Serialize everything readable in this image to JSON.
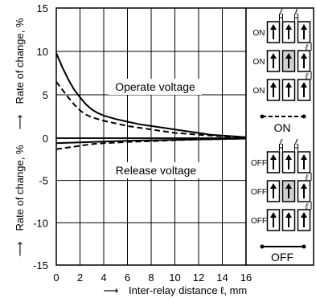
{
  "chart_data": {
    "type": "line",
    "xlabel": "Inter-relay distance ℓ, mm",
    "xlabel_arrow": "⟶",
    "ylabel_top": "Rate of change, %",
    "ylabel_bottom": "Rate of change, %",
    "ylabel_arrow": "⟶",
    "xlim": [
      0,
      16
    ],
    "ylim": [
      -15,
      15
    ],
    "x_ticks": [
      "0",
      "2",
      "4",
      "6",
      "8",
      "10",
      "12",
      "14",
      "16"
    ],
    "y_ticks_top": [
      "15",
      "10",
      "5",
      "0"
    ],
    "y_ticks_bottom": [
      "-5",
      "-10",
      "-15"
    ],
    "grid": true,
    "annotations": [
      {
        "text": "Operate voltage",
        "x": 9.5,
        "y": 5.3
      },
      {
        "text": "Release voltage",
        "x": 8,
        "y": -3.2
      }
    ],
    "series": [
      {
        "style": "solid",
        "x": [
          0,
          0.5,
          1,
          1.5,
          2,
          2.5,
          3,
          3.5,
          4,
          5,
          6,
          7,
          8,
          9,
          10,
          11,
          12,
          13,
          14,
          15,
          16
        ],
        "y": [
          9.8,
          8.2,
          6.8,
          5.6,
          4.7,
          3.9,
          3.3,
          2.9,
          2.6,
          2.2,
          1.9,
          1.6,
          1.4,
          1.2,
          1.0,
          0.8,
          0.6,
          0.4,
          0.3,
          0.2,
          0.1
        ]
      },
      {
        "style": "dashed",
        "x": [
          0,
          0.5,
          1,
          1.5,
          2,
          2.5,
          3,
          3.5,
          4,
          5,
          6,
          7,
          8,
          9,
          10,
          11,
          12,
          13,
          14,
          15,
          16
        ],
        "y": [
          6.5,
          5.6,
          4.7,
          3.9,
          3.2,
          2.7,
          2.4,
          2.2,
          2.0,
          1.7,
          1.4,
          1.2,
          1.0,
          0.8,
          0.6,
          0.5,
          0.4,
          0.3,
          0.2,
          0.1,
          0.1
        ]
      },
      {
        "style": "solid",
        "x": [
          0,
          2,
          4,
          6,
          8,
          10,
          12,
          14,
          16
        ],
        "y": [
          -0.6,
          -0.5,
          -0.4,
          -0.3,
          -0.25,
          -0.2,
          -0.15,
          -0.1,
          -0.05
        ]
      },
      {
        "style": "dashed",
        "x": [
          0,
          1,
          2,
          3,
          4,
          6,
          8,
          10,
          12,
          14,
          16
        ],
        "y": [
          -1.3,
          -1.1,
          -0.9,
          -0.7,
          -0.6,
          -0.45,
          -0.35,
          -0.25,
          -0.15,
          -0.1,
          -0.05
        ]
      }
    ]
  },
  "legend_panel": {
    "spacing_symbol": "ℓ",
    "on": {
      "row_labels": [
        "ON",
        "ON",
        "ON"
      ],
      "caption": "ON",
      "line_style": "dashed",
      "center_highlight": "#d0d0d0"
    },
    "off": {
      "row_labels": [
        "OFF",
        "OFF",
        "OFF"
      ],
      "caption": "OFF",
      "line_style": "solid",
      "center_highlight": "#d0d0d0"
    }
  }
}
